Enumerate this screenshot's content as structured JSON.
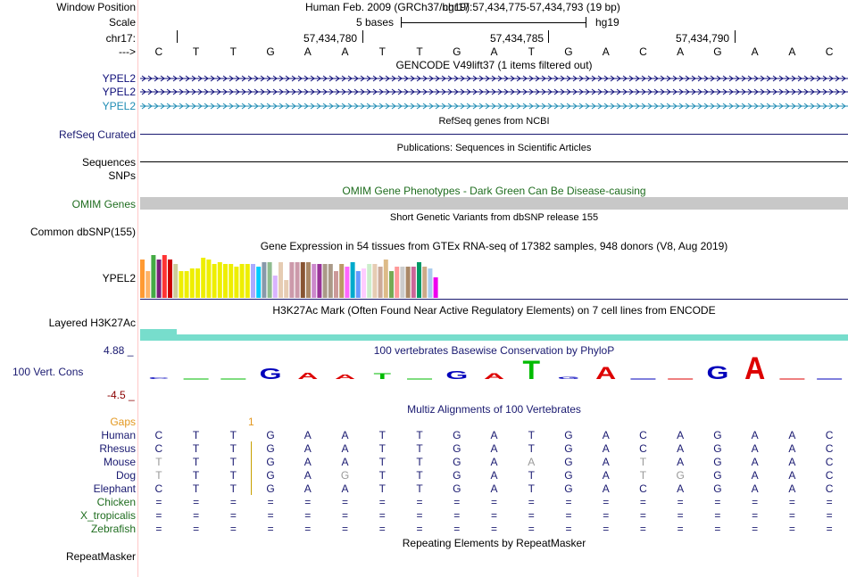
{
  "header": {
    "window_position_label": "Window Position",
    "assembly_text": "Human Feb. 2009 (GRCh37/hg19)",
    "position_text": "chr17:57,434,775-57,434,793 (19 bp)",
    "scale_label": "Scale",
    "scale_text": "5 bases",
    "scale_db": "hg19",
    "chrom_label": "chr17:",
    "coord_ticks": [
      "57,434,780",
      "57,434,785",
      "57,434,790"
    ],
    "strand_label": "--->",
    "bases": [
      "C",
      "T",
      "T",
      "G",
      "A",
      "A",
      "T",
      "T",
      "G",
      "A",
      "T",
      "G",
      "A",
      "C",
      "A",
      "G",
      "A",
      "A",
      "C"
    ]
  },
  "gencode": {
    "title": "GENCODE V49lift37 (1 items filtered out)",
    "tracks": [
      {
        "label": "YPEL2",
        "color": "#0c0c78"
      },
      {
        "label": "YPEL2",
        "color": "#0c0c78"
      },
      {
        "label": "YPEL2",
        "color": "#1e8cb4"
      }
    ]
  },
  "refseq": {
    "title": "RefSeq genes from NCBI",
    "label": "RefSeq Curated"
  },
  "publications": {
    "title": "Publications: Sequences in Scientific Articles",
    "sequences_label": "Sequences",
    "snps_label": "SNPs"
  },
  "omim": {
    "title": "OMIM Gene Phenotypes - Dark Green Can Be Disease-causing",
    "label": "OMIM Genes"
  },
  "dbsnp": {
    "title": "Short Genetic Variants from dbSNP release 155",
    "label": "Common dbSNP(155)"
  },
  "gtex": {
    "title": "Gene Expression in 54 tissues from GTEx RNA-seq of 17382 samples, 948 donors (V8, Aug 2019)",
    "label": "YPEL2",
    "tissue_levels": [
      0.85,
      0.6,
      0.95,
      0.85,
      0.95,
      0.85,
      0.75,
      0.6,
      0.6,
      0.65,
      0.65,
      0.9,
      0.85,
      0.75,
      0.8,
      0.75,
      0.75,
      0.7,
      0.75,
      0.75,
      0.75,
      0.7,
      0.8,
      0.8,
      0.5,
      0.8,
      0.4,
      0.8,
      0.8,
      0.8,
      0.8,
      0.75,
      0.75,
      0.75,
      0.75,
      0.6,
      0.75,
      0.7,
      0.8,
      0.6,
      0.65,
      0.75,
      0.75,
      0.7,
      0.85,
      0.6,
      0.7,
      0.7,
      0.7,
      0.7,
      0.8,
      0.7,
      0.65,
      0.45
    ],
    "tissue_colors": [
      "#ff9a33",
      "#ffb366",
      "#44aa44",
      "#7a1f7a",
      "#ff3333",
      "#cc0000",
      "#cccc99",
      "#eeee00",
      "#eeee00",
      "#eeee00",
      "#eeee00",
      "#eeee00",
      "#eeee00",
      "#eeee00",
      "#eeee00",
      "#eeee00",
      "#eeee00",
      "#eeee00",
      "#eeee00",
      "#eeee00",
      "#aaaaff",
      "#00ccff",
      "#8899aa",
      "#8fbc8f",
      "#d9b3ff",
      "#e6ccb3",
      "#e6ccb3",
      "#cc99aa",
      "#cc99aa",
      "#885533",
      "#aa8866",
      "#cc88cc",
      "#993399",
      "#aa9988",
      "#aa9988",
      "#cc9999",
      "#bb9966",
      "#ff66ff",
      "#00aacc",
      "#6699ff",
      "#ffccff",
      "#cceecc",
      "#e6ccb3",
      "#ccaa99",
      "#ddbb88",
      "#77aa55",
      "#ff9999",
      "#cccccc",
      "#aa8866",
      "#cc6699",
      "#009966",
      "#ccaa88",
      "#aaccee",
      "#ee00ee"
    ]
  },
  "h3k27ac": {
    "title": "H3K27Ac Mark (Often Found Near Active Regulatory Elements) on 7 cell lines from ENCODE",
    "label": "Layered H3K27Ac"
  },
  "phylop": {
    "title": "100 vertebrates Basewise Conservation by PhyloP",
    "label": "100 Vert. Cons",
    "max_label": "4.88 _",
    "min_label": "-4.5 _",
    "logo": [
      {
        "base": "C",
        "score": 0.15
      },
      {
        "base": "T",
        "score": 0.05
      },
      {
        "base": "T",
        "score": 0.05
      },
      {
        "base": "G",
        "score": 1.6
      },
      {
        "base": "A",
        "score": 0.9
      },
      {
        "base": "A",
        "score": 0.7
      },
      {
        "base": "T",
        "score": 0.8
      },
      {
        "base": "T",
        "score": 0.05
      },
      {
        "base": "G",
        "score": 1.2
      },
      {
        "base": "A",
        "score": 0.8
      },
      {
        "base": "T",
        "score": 2.7
      },
      {
        "base": "G",
        "score": 0.3
      },
      {
        "base": "A",
        "score": 1.8
      },
      {
        "base": "C",
        "score": 0.05
      },
      {
        "base": "A",
        "score": 0.0
      },
      {
        "base": "G",
        "score": 1.9
      },
      {
        "base": "A",
        "score": 3.2
      },
      {
        "base": "A",
        "score": 0.05
      },
      {
        "base": "C",
        "score": 0.05
      }
    ]
  },
  "multiz": {
    "title": "Multiz Alignments of 100 Vertebrates",
    "gaps_label": "Gaps",
    "gap_count": "1",
    "species": [
      {
        "name": "Human",
        "seq": [
          "C",
          "T",
          "T",
          "G",
          "A",
          "A",
          "T",
          "T",
          "G",
          "A",
          "T",
          "G",
          "A",
          "C",
          "A",
          "G",
          "A",
          "A",
          "C"
        ],
        "grey": []
      },
      {
        "name": "Rhesus",
        "seq": [
          "C",
          "T",
          "T",
          "G",
          "A",
          "A",
          "T",
          "T",
          "G",
          "A",
          "T",
          "G",
          "A",
          "C",
          "A",
          "G",
          "A",
          "A",
          "C"
        ],
        "grey": []
      },
      {
        "name": "Mouse",
        "seq": [
          "T",
          "T",
          "T",
          "G",
          "A",
          "A",
          "T",
          "T",
          "G",
          "A",
          "A",
          "G",
          "A",
          "T",
          "A",
          "G",
          "A",
          "A",
          "C"
        ],
        "grey": [
          0,
          10,
          13
        ]
      },
      {
        "name": "Dog",
        "seq": [
          "T",
          "T",
          "T",
          "G",
          "A",
          "G",
          "T",
          "T",
          "G",
          "A",
          "T",
          "G",
          "A",
          "T",
          "G",
          "G",
          "A",
          "A",
          "C"
        ],
        "grey": [
          0,
          5,
          13,
          14
        ]
      },
      {
        "name": "Elephant",
        "seq": [
          "C",
          "T",
          "T",
          "G",
          "A",
          "A",
          "T",
          "T",
          "G",
          "A",
          "T",
          "G",
          "A",
          "C",
          "A",
          "G",
          "A",
          "A",
          "C"
        ],
        "grey": []
      },
      {
        "name": "Chicken",
        "seq": [
          "=",
          "=",
          "=",
          "=",
          "=",
          "=",
          "=",
          "=",
          "=",
          "=",
          "=",
          "=",
          "=",
          "=",
          "=",
          "=",
          "=",
          "=",
          "="
        ],
        "grey": []
      },
      {
        "name": "X_tropicalis",
        "seq": [
          "=",
          "=",
          "=",
          "=",
          "=",
          "=",
          "=",
          "=",
          "=",
          "=",
          "=",
          "=",
          "=",
          "=",
          "=",
          "=",
          "=",
          "=",
          "="
        ],
        "grey": []
      },
      {
        "name": "Zebrafish",
        "seq": [
          "=",
          "=",
          "=",
          "=",
          "=",
          "=",
          "=",
          "=",
          "=",
          "=",
          "=",
          "=",
          "=",
          "=",
          "=",
          "=",
          "=",
          "=",
          "="
        ],
        "grey": []
      }
    ]
  },
  "repeatmasker": {
    "title": "Repeating Elements by RepeatMasker",
    "label": "RepeatMasker"
  },
  "colors": {
    "navy": "#191970",
    "green": "#1f6d1f",
    "omim_grey": "#c8c8c8",
    "h3k27ac": "#77ddcc",
    "gaps_orange": "#e39820"
  }
}
